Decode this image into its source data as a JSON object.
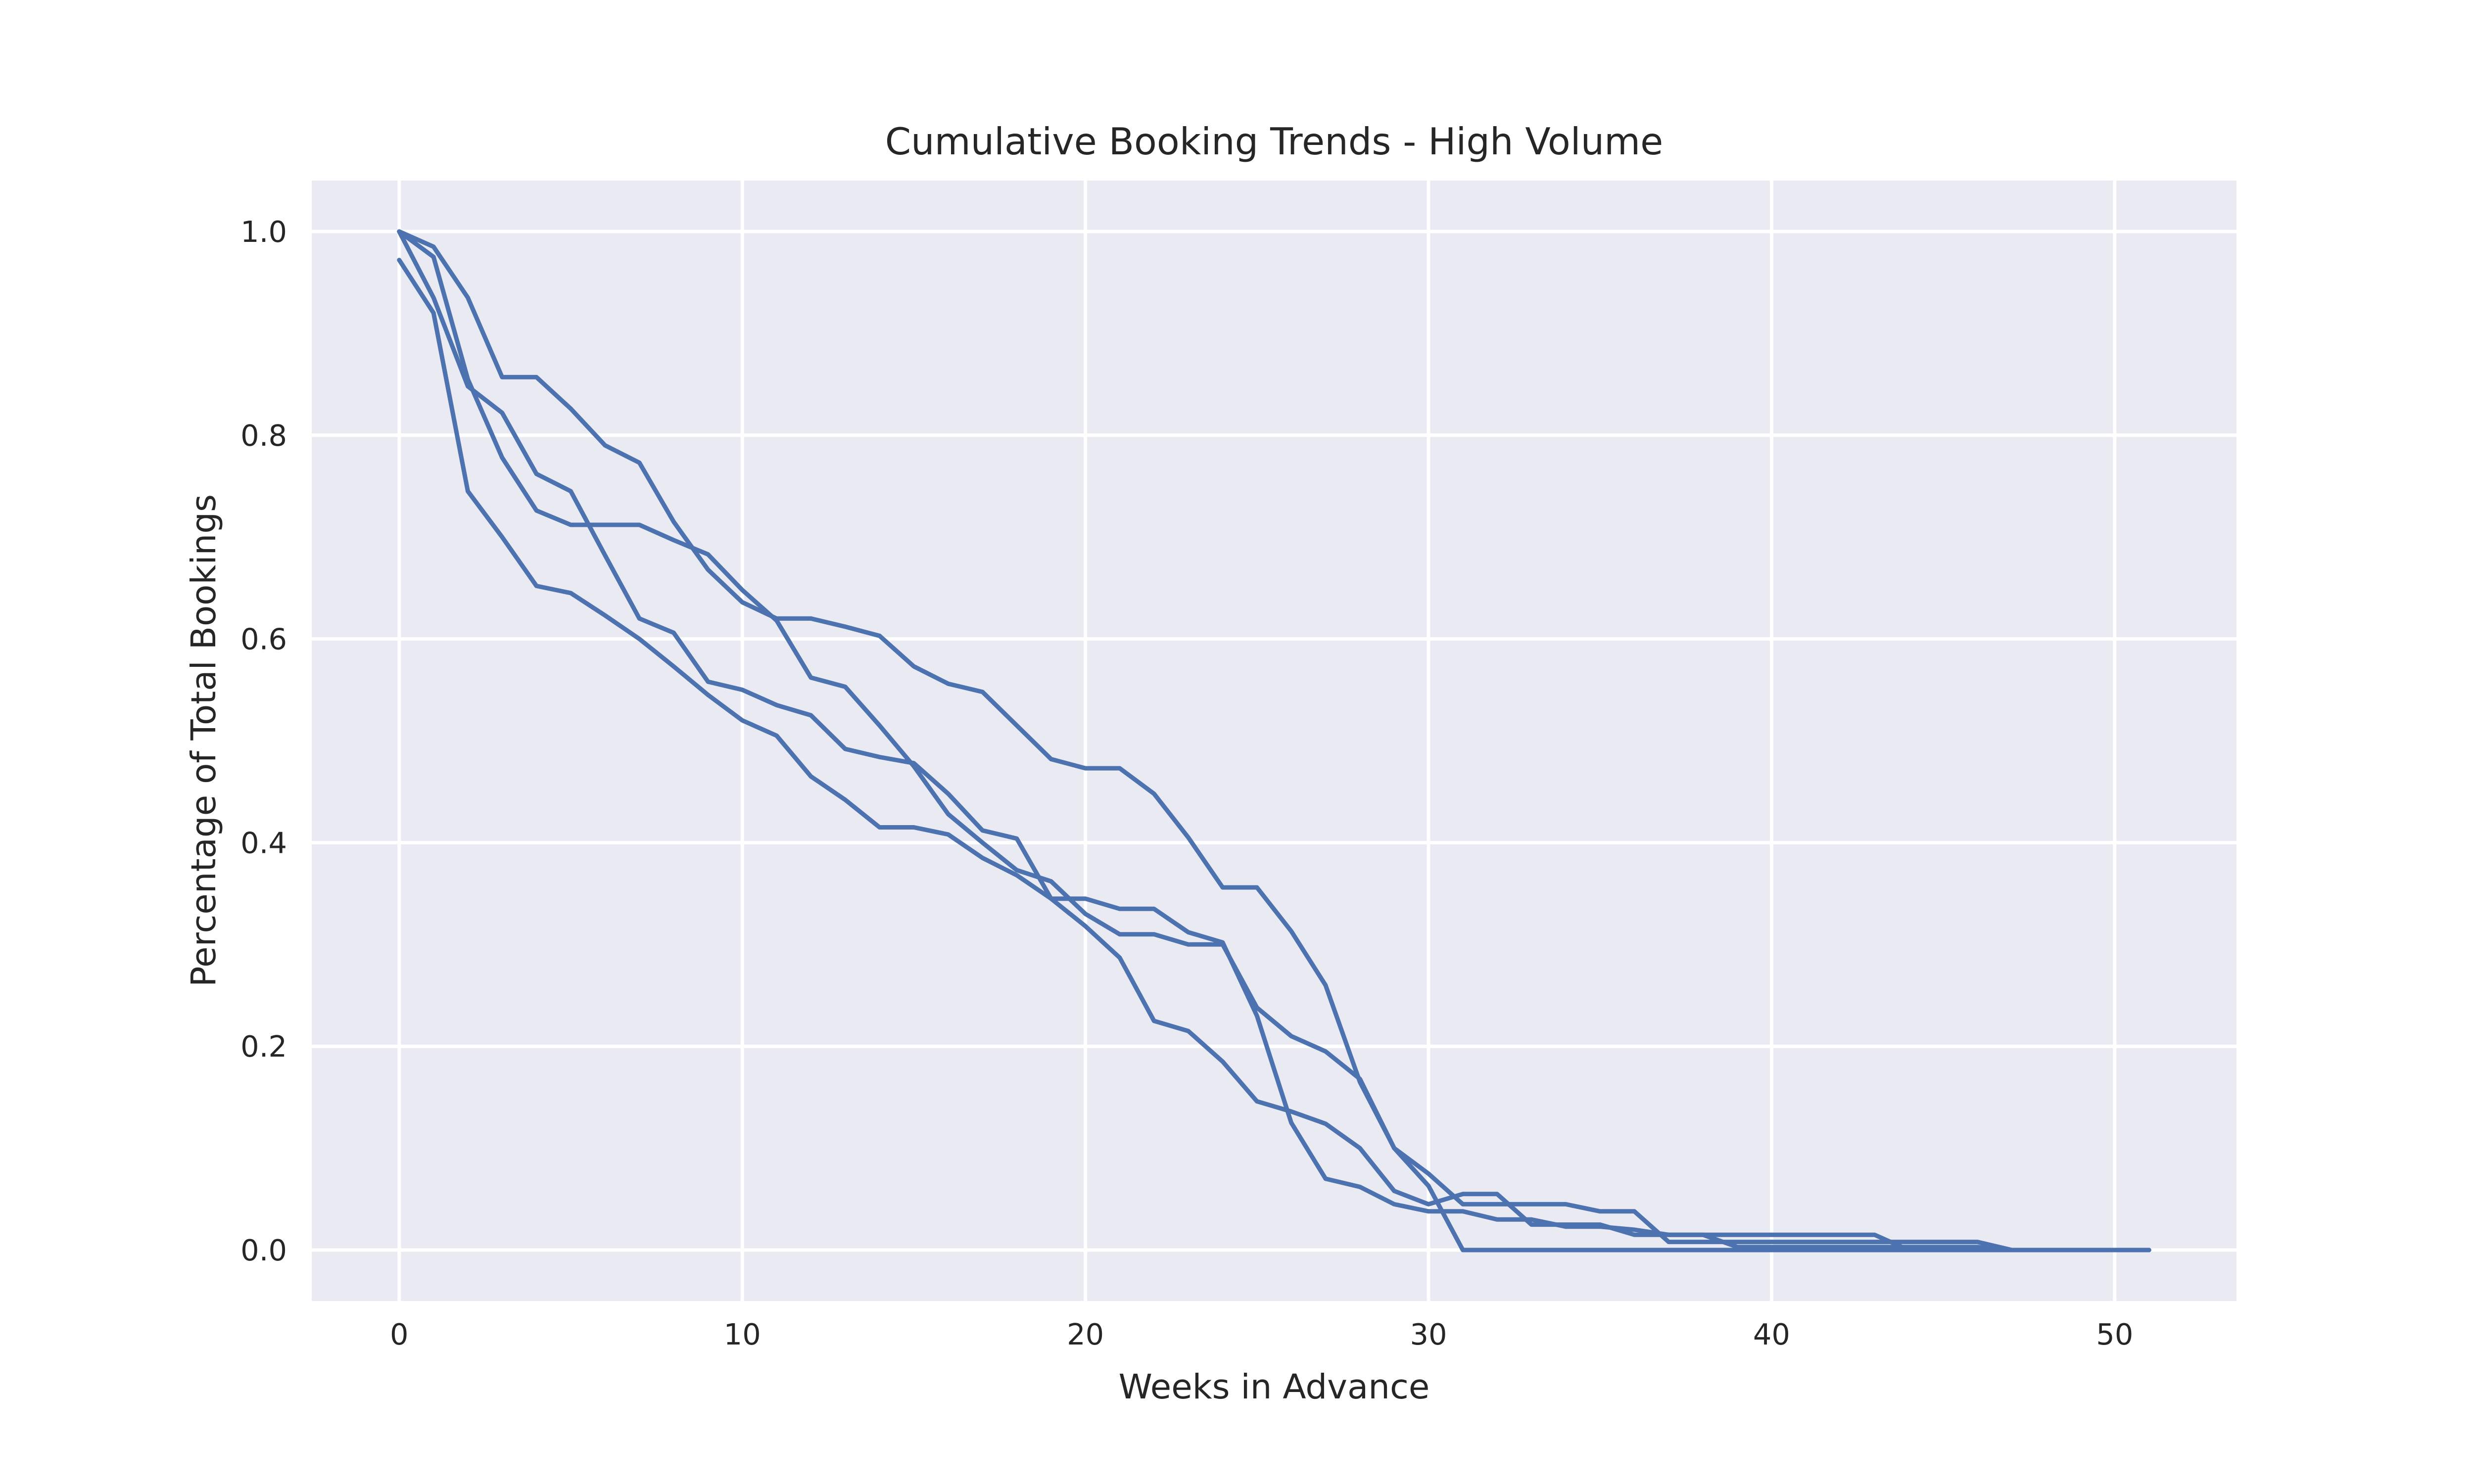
{
  "chart_data": {
    "type": "line",
    "title": "Cumulative Booking Trends - High Volume",
    "xlabel": "Weeks in Advance",
    "ylabel": "Percentage of Total Bookings",
    "xlim": [
      -2.55,
      53.55
    ],
    "ylim": [
      -0.05,
      1.05
    ],
    "x_ticks": [
      0,
      10,
      20,
      30,
      40,
      50
    ],
    "x_tick_labels": [
      "0",
      "10",
      "20",
      "30",
      "40",
      "50"
    ],
    "y_ticks": [
      0.0,
      0.2,
      0.4,
      0.6,
      0.8,
      1.0
    ],
    "y_tick_labels": [
      "0.0",
      "0.2",
      "0.4",
      "0.6",
      "0.8",
      "1.0"
    ],
    "grid": true,
    "legend": "none",
    "colors": {
      "line": "#4c72b0",
      "plot_background": "#eaeaf2",
      "grid": "#ffffff",
      "page_background": "#ffffff",
      "text": "#262626"
    },
    "series": [
      {
        "x": [
          0,
          1,
          2,
          3,
          4,
          5,
          6,
          7,
          8,
          9,
          10,
          11,
          12,
          13,
          14,
          15,
          16,
          17,
          18,
          19,
          20,
          21,
          22,
          23,
          24,
          25,
          26,
          27,
          28,
          29,
          30,
          31,
          32,
          33,
          34,
          35,
          36,
          37,
          38,
          39,
          40,
          41,
          42,
          43,
          44,
          45,
          46,
          47,
          48,
          49,
          50,
          51
        ],
        "values": [
          1.0,
          0.985,
          0.935,
          0.857,
          0.857,
          0.826,
          0.79,
          0.773,
          0.715,
          0.668,
          0.636,
          0.62,
          0.62,
          0.612,
          0.603,
          0.573,
          0.556,
          0.548,
          0.515,
          0.482,
          0.473,
          0.473,
          0.448,
          0.405,
          0.356,
          0.356,
          0.313,
          0.26,
          0.165,
          0.1,
          0.075,
          0.045,
          0.045,
          0.045,
          0.045,
          0.038,
          0.038,
          0.008,
          0.008,
          0.008,
          0.008,
          0.008,
          0.008,
          0.008,
          0.008,
          0.008,
          0.008,
          0.0,
          0.0,
          0.0,
          0.0,
          0.0
        ]
      },
      {
        "x": [
          0,
          1,
          2,
          3,
          4,
          5,
          6,
          7,
          8,
          9,
          10,
          11,
          12,
          13,
          14,
          15,
          16,
          17,
          18,
          19,
          20,
          21,
          22,
          23,
          24,
          25,
          26,
          27,
          28,
          29,
          30,
          31,
          32,
          33,
          34,
          35,
          36,
          37,
          38,
          39,
          40,
          41,
          42,
          43,
          44,
          45,
          46,
          47,
          48,
          49,
          50,
          51
        ],
        "values": [
          1.0,
          0.975,
          0.855,
          0.778,
          0.726,
          0.712,
          0.712,
          0.712,
          0.697,
          0.683,
          0.648,
          0.618,
          0.562,
          0.553,
          0.515,
          0.475,
          0.428,
          0.4,
          0.373,
          0.362,
          0.33,
          0.31,
          0.31,
          0.3,
          0.3,
          0.238,
          0.21,
          0.195,
          0.168,
          0.1,
          0.063,
          0.0,
          0.0,
          0.0,
          0.0,
          0.0,
          0.0,
          0.0,
          0.0,
          0.0,
          0.0,
          0.0,
          0.0,
          0.0,
          0.0,
          0.0,
          0.0,
          0.0,
          0.0,
          0.0,
          0.0,
          0.0
        ]
      },
      {
        "x": [
          0,
          1,
          2,
          3,
          4,
          5,
          6,
          7,
          8,
          9,
          10,
          11,
          12,
          13,
          14,
          15,
          16,
          17,
          18,
          19,
          20,
          21,
          22,
          23,
          24,
          25,
          26,
          27,
          28,
          29,
          30,
          31,
          32,
          33,
          34,
          35,
          36,
          37,
          38,
          39,
          40,
          41,
          42,
          43,
          44,
          45,
          46,
          47,
          48,
          49,
          50,
          51
        ],
        "values": [
          0.972,
          0.92,
          0.745,
          0.7,
          0.652,
          0.645,
          0.623,
          0.6,
          0.573,
          0.545,
          0.52,
          0.505,
          0.465,
          0.442,
          0.415,
          0.415,
          0.408,
          0.385,
          0.368,
          0.345,
          0.345,
          0.335,
          0.335,
          0.312,
          0.302,
          0.23,
          0.125,
          0.07,
          0.062,
          0.045,
          0.038,
          0.038,
          0.03,
          0.03,
          0.023,
          0.023,
          0.02,
          0.015,
          0.015,
          0.015,
          0.015,
          0.015,
          0.015,
          0.015,
          0.0,
          0.0,
          0.0,
          0.0,
          0.0,
          0.0,
          0.0,
          0.0
        ]
      },
      {
        "x": [
          0,
          1,
          2,
          3,
          4,
          5,
          6,
          7,
          8,
          9,
          10,
          11,
          12,
          13,
          14,
          15,
          16,
          17,
          18,
          19,
          20,
          21,
          22,
          23,
          24,
          25,
          26,
          27,
          28,
          29,
          30,
          31,
          32,
          33,
          34,
          35,
          36,
          37,
          38,
          39,
          40,
          41,
          42,
          43,
          44,
          45,
          46,
          47,
          48,
          49,
          50,
          51
        ],
        "values": [
          1.0,
          0.935,
          0.848,
          0.822,
          0.762,
          0.745,
          0.682,
          0.62,
          0.606,
          0.558,
          0.55,
          0.535,
          0.525,
          0.492,
          0.484,
          0.478,
          0.448,
          0.412,
          0.404,
          0.345,
          0.318,
          0.287,
          0.225,
          0.215,
          0.185,
          0.146,
          0.136,
          0.124,
          0.1,
          0.058,
          0.045,
          0.055,
          0.055,
          0.025,
          0.025,
          0.025,
          0.015,
          0.015,
          0.015,
          0.003,
          0.003,
          0.003,
          0.003,
          0.003,
          0.003,
          0.003,
          0.003,
          0.0,
          0.0,
          0.0,
          0.0,
          0.0
        ]
      }
    ]
  }
}
